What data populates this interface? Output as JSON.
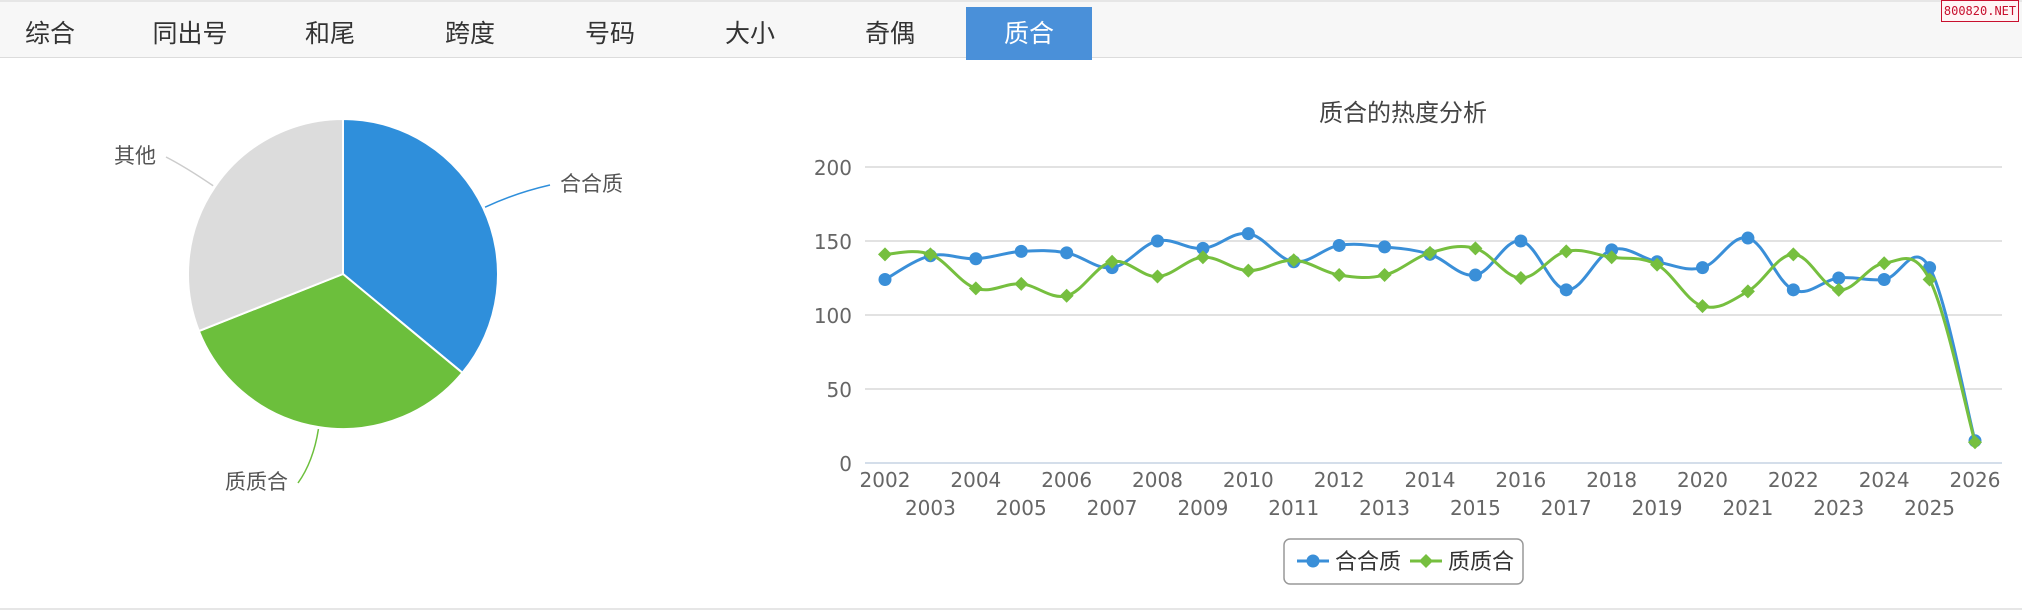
{
  "tabs": [
    {
      "label": "综合",
      "active": false
    },
    {
      "label": "同出号",
      "active": false
    },
    {
      "label": "和尾",
      "active": false
    },
    {
      "label": "跨度",
      "active": false
    },
    {
      "label": "号码",
      "active": false
    },
    {
      "label": "大小",
      "active": false
    },
    {
      "label": "奇偶",
      "active": false
    },
    {
      "label": "质合",
      "active": true
    }
  ],
  "watermark": "800820.NET",
  "colors": {
    "blue": "#3a8fd8",
    "green": "#76bf3f",
    "grey": "#dcdcdc",
    "accent": "#4a90d9"
  },
  "chart_data": [
    {
      "type": "pie",
      "slices": [
        {
          "label": "合合质",
          "value": 36,
          "color": "#2f8fdb"
        },
        {
          "label": "质质合",
          "value": 33,
          "color": "#6cbf3c"
        },
        {
          "label": "其他",
          "value": 31,
          "color": "#dcdcdc"
        }
      ]
    },
    {
      "type": "line",
      "title": "质合的热度分析",
      "x": [
        "2002",
        "2003",
        "2004",
        "2005",
        "2006",
        "2007",
        "2008",
        "2009",
        "2010",
        "2011",
        "2012",
        "2013",
        "2014",
        "2015",
        "2016",
        "2017",
        "2018",
        "2019",
        "2020",
        "2021",
        "2022",
        "2023",
        "2024",
        "2025",
        "2026"
      ],
      "ylim": [
        0,
        200
      ],
      "yticks": [
        "0",
        "50",
        "100",
        "150",
        "200"
      ],
      "grid": true,
      "legend_position": "bottom-center",
      "series": [
        {
          "name": "合合质",
          "marker": "circle",
          "color": "#3a8fd8",
          "values": [
            124,
            140,
            138,
            143,
            142,
            132,
            150,
            145,
            155,
            136,
            147,
            146,
            141,
            127,
            150,
            117,
            144,
            136,
            132,
            152,
            117,
            125,
            124,
            132,
            15
          ]
        },
        {
          "name": "质质合",
          "marker": "diamond",
          "color": "#76bf3f",
          "values": [
            141,
            141,
            118,
            121,
            113,
            136,
            126,
            139,
            130,
            137,
            127,
            127,
            142,
            145,
            125,
            143,
            139,
            134,
            106,
            116,
            141,
            117,
            135,
            124,
            14
          ]
        }
      ]
    }
  ]
}
